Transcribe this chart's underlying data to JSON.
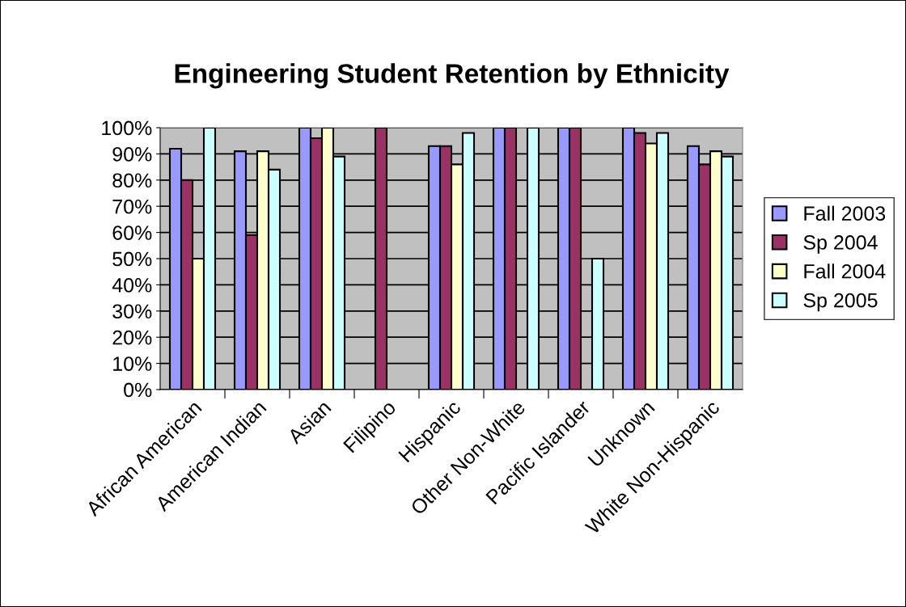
{
  "chart_data": {
    "type": "bar",
    "title": "Engineering Student Retention by Ethnicity",
    "categories": [
      "African American",
      "American Indian",
      "Asian",
      "Filipino",
      "Hispanic",
      "Other Non-White",
      "Pacific Islander",
      "Unknown",
      "White Non-Hispanic"
    ],
    "series": [
      {
        "name": "Fall 2003",
        "color": "#9999ff",
        "values": [
          92,
          91,
          100,
          null,
          93,
          100,
          100,
          100,
          93
        ]
      },
      {
        "name": "Sp 2004",
        "color": "#993366",
        "values": [
          80,
          59,
          96,
          100,
          93,
          100,
          100,
          98,
          86
        ]
      },
      {
        "name": "Fall 2004",
        "color": "#ffffcc",
        "values": [
          50,
          91,
          100,
          null,
          86,
          null,
          null,
          94,
          91
        ]
      },
      {
        "name": "Sp 2005",
        "color": "#ccffff",
        "values": [
          100,
          84,
          89,
          null,
          98,
          100,
          50,
          98,
          89
        ]
      }
    ],
    "ylim": [
      0,
      100
    ],
    "yticks": [
      {
        "value": 0,
        "label": "0%"
      },
      {
        "value": 10,
        "label": "10%"
      },
      {
        "value": 20,
        "label": "20%"
      },
      {
        "value": 30,
        "label": "30%"
      },
      {
        "value": 40,
        "label": "40%"
      },
      {
        "value": 50,
        "label": "50%"
      },
      {
        "value": 60,
        "label": "60%"
      },
      {
        "value": 70,
        "label": "70%"
      },
      {
        "value": 80,
        "label": "80%"
      },
      {
        "value": 90,
        "label": "90%"
      },
      {
        "value": 100,
        "label": "100%"
      }
    ],
    "grid": "y",
    "legend": "right"
  }
}
